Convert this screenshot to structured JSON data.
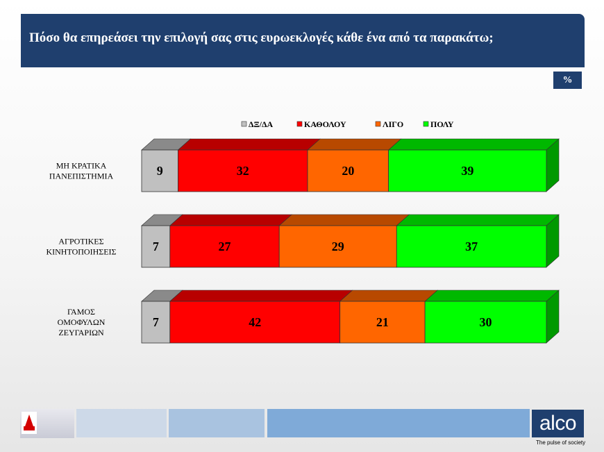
{
  "header": {
    "title": "Πόσο θα επηρεάσει την επιλογή σας στις ευρωεκλογές κάθε ένα από τα παρακάτω;"
  },
  "badge": {
    "label": "%"
  },
  "colors": {
    "dk": "#c0c0c0",
    "katholou": "#ff0000",
    "ligo": "#ff6600",
    "poly": "#00ff00",
    "header": "#1f3f6e"
  },
  "footer": {
    "logo_icon": "alpha-news-logo",
    "brand": "alco",
    "tagline": "The pulse of society"
  },
  "chart_data": {
    "type": "bar",
    "orientation": "horizontal",
    "stacked": true,
    "unit": "%",
    "legend_position": "top",
    "categories": [
      [
        "ΜΗ ΚΡΑΤΙΚΑ",
        "ΠΑΝΕΠΙΣΤΗΜΙΑ"
      ],
      [
        "ΑΓΡΟΤΙΚΕΣ",
        "ΚΙΝΗΤΟΠΟΙΗΣΕΙΣ"
      ],
      [
        "ΓΑΜΟΣ",
        "ΟΜΟΦΥΛΩΝ",
        "ΖΕΥΓΑΡΙΩΝ"
      ]
    ],
    "series": [
      {
        "name": "ΔΞ/ΔΑ",
        "color": "#c0c0c0",
        "values": [
          9,
          7,
          7
        ]
      },
      {
        "name": "ΚΑΘΟΛΟΥ",
        "color": "#ff0000",
        "values": [
          32,
          27,
          42
        ]
      },
      {
        "name": "ΛΙΓΟ",
        "color": "#ff6600",
        "values": [
          20,
          29,
          21
        ]
      },
      {
        "name": "ΠΟΛΥ",
        "color": "#00ff00",
        "values": [
          39,
          37,
          30
        ]
      }
    ]
  }
}
